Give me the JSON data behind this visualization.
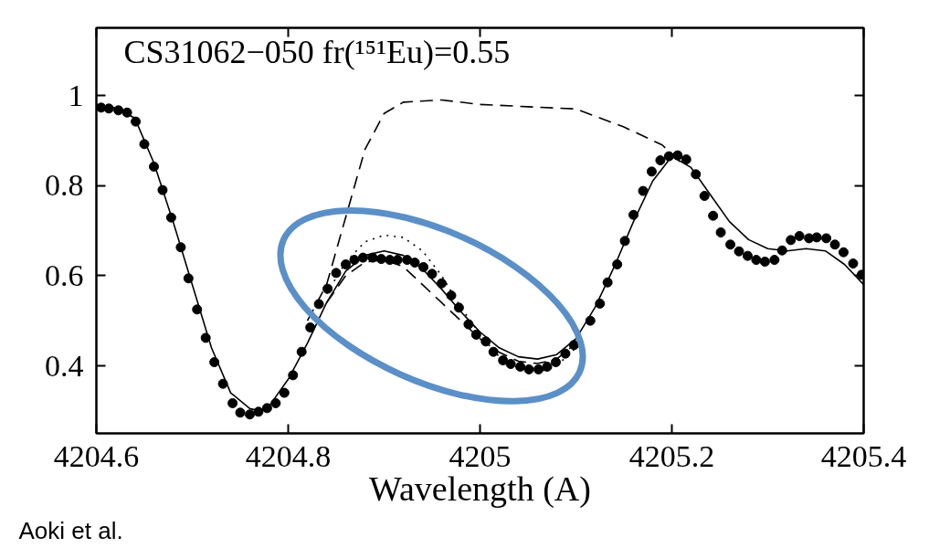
{
  "chart_data": {
    "type": "scatter",
    "title": "CS31062−050  fr(¹⁵¹Eu)=0.55",
    "xlabel": "Wavelength (A)",
    "annotations": [
      "Aoki et al."
    ],
    "xlim": [
      4204.6,
      4205.4
    ],
    "ylim": [
      0.25,
      1.15
    ],
    "xticks": [
      4204.6,
      4204.8,
      {
        "value": 4205,
        "label": "4205"
      },
      4205.2,
      4205.4
    ],
    "yticks": [
      0.4,
      0.6,
      0.8,
      {
        "value": 1,
        "label": "1"
      }
    ],
    "grid": false,
    "series": [
      {
        "color": "#000000",
        "marker": "circle",
        "x": [
          4204.605,
          4204.613,
          4204.623,
          4204.632,
          4204.641,
          4204.65,
          4204.66,
          4204.669,
          4204.678,
          4204.688,
          4204.696,
          4204.705,
          4204.714,
          4204.723,
          4204.732,
          4204.742,
          4204.75,
          4204.76,
          4204.769,
          4204.778,
          4204.787,
          4204.796,
          4204.805,
          4204.814,
          4204.823,
          4204.832,
          4204.841,
          4204.85,
          4204.86,
          4204.869,
          4204.878,
          4204.888,
          4204.897,
          4204.906,
          4204.914,
          4204.924,
          4204.932,
          4204.941,
          4204.95,
          4204.96,
          4204.97,
          4204.978,
          4204.988,
          4204.996,
          4205.006,
          4205.014,
          4205.024,
          4205.032,
          4205.042,
          4205.051,
          4205.061,
          4205.07,
          4205.079,
          4205.089,
          4205.098,
          4205.115,
          4205.125,
          4205.133,
          4205.143,
          4205.151,
          4205.16,
          4205.17,
          4205.179,
          4205.188,
          4205.197,
          4205.206,
          4205.215,
          4205.225,
          4205.234,
          4205.243,
          4205.251,
          4205.261,
          4205.27,
          4205.279,
          4205.288,
          4205.297,
          4205.307,
          4205.315,
          4205.324,
          4205.333,
          4205.343,
          4205.351,
          4205.361,
          4205.37,
          4205.379,
          4205.389,
          4205.398
        ],
        "values": [
          0.973,
          0.971,
          0.967,
          0.962,
          0.942,
          0.892,
          0.842,
          0.79,
          0.729,
          0.663,
          0.594,
          0.525,
          0.462,
          0.408,
          0.36,
          0.317,
          0.296,
          0.292,
          0.298,
          0.306,
          0.317,
          0.34,
          0.379,
          0.431,
          0.485,
          0.537,
          0.571,
          0.606,
          0.625,
          0.635,
          0.64,
          0.64,
          0.637,
          0.635,
          0.635,
          0.635,
          0.629,
          0.619,
          0.604,
          0.583,
          0.556,
          0.529,
          0.492,
          0.469,
          0.454,
          0.431,
          0.412,
          0.404,
          0.398,
          0.392,
          0.392,
          0.398,
          0.408,
          0.427,
          0.446,
          0.5,
          0.538,
          0.585,
          0.625,
          0.677,
          0.735,
          0.788,
          0.831,
          0.856,
          0.865,
          0.867,
          0.858,
          0.825,
          0.777,
          0.733,
          0.696,
          0.669,
          0.654,
          0.644,
          0.635,
          0.631,
          0.635,
          0.656,
          0.679,
          0.688,
          0.683,
          0.685,
          0.683,
          0.669,
          0.652,
          0.627,
          0.602
        ]
      },
      {
        "type": "line",
        "color": "#000000",
        "line_style": "solid",
        "x": [
          4204.6,
          4204.62,
          4204.64,
          4204.66,
          4204.68,
          4204.7,
          4204.72,
          4204.74,
          4204.76,
          4204.77,
          4204.78,
          4204.8,
          4204.82,
          4204.84,
          4204.86,
          4204.88,
          4204.9,
          4204.92,
          4204.94,
          4204.96,
          4204.98,
          4205.0,
          4205.02,
          4205.04,
          4205.06,
          4205.08,
          4205.1,
          4205.12,
          4205.14,
          4205.16,
          4205.18,
          4205.2,
          4205.22,
          4205.24,
          4205.26,
          4205.28,
          4205.3,
          4205.32,
          4205.34,
          4205.36,
          4205.38,
          4205.4
        ],
        "values": [
          0.98,
          0.972,
          0.95,
          0.85,
          0.72,
          0.58,
          0.44,
          0.34,
          0.305,
          0.3,
          0.31,
          0.37,
          0.45,
          0.54,
          0.61,
          0.645,
          0.655,
          0.645,
          0.615,
          0.57,
          0.52,
          0.475,
          0.44,
          0.42,
          0.415,
          0.425,
          0.46,
          0.53,
          0.62,
          0.72,
          0.81,
          0.865,
          0.84,
          0.78,
          0.72,
          0.68,
          0.66,
          0.655,
          0.66,
          0.655,
          0.625,
          0.58
        ]
      },
      {
        "type": "line",
        "color": "#000000",
        "line_style": "dotted",
        "x": [
          4204.84,
          4204.86,
          4204.88,
          4204.9,
          4204.92,
          4204.94,
          4204.96,
          4204.98,
          4205.0,
          4205.02,
          4205.04,
          4205.06,
          4205.08,
          4205.1
        ],
        "values": [
          0.56,
          0.63,
          0.675,
          0.69,
          0.685,
          0.655,
          0.6,
          0.53,
          0.47,
          0.42,
          0.395,
          0.385,
          0.4,
          0.44
        ]
      },
      {
        "type": "line",
        "color": "#000000",
        "line_style": "dashed",
        "x": [
          4204.84,
          4204.86,
          4204.88,
          4204.9,
          4204.92,
          4204.94,
          4204.96,
          4204.98,
          4205.0,
          4205.02,
          4205.04,
          4205.06,
          4205.08,
          4205.1
        ],
        "values": [
          0.54,
          0.6,
          0.63,
          0.635,
          0.62,
          0.58,
          0.54,
          0.5,
          0.46,
          0.43,
          0.41,
          0.405,
          0.415,
          0.45
        ]
      },
      {
        "type": "line",
        "color": "#000000",
        "line_style": "dashed",
        "x": [
          4204.82,
          4204.84,
          4204.86,
          4204.88,
          4204.9,
          4204.92,
          4204.96,
          4205.0,
          4205.05,
          4205.1,
          4205.15,
          4205.19,
          4205.21
        ],
        "values": [
          0.5,
          0.58,
          0.73,
          0.88,
          0.96,
          0.985,
          0.99,
          0.98,
          0.975,
          0.97,
          0.93,
          0.89,
          0.85
        ]
      }
    ]
  }
}
